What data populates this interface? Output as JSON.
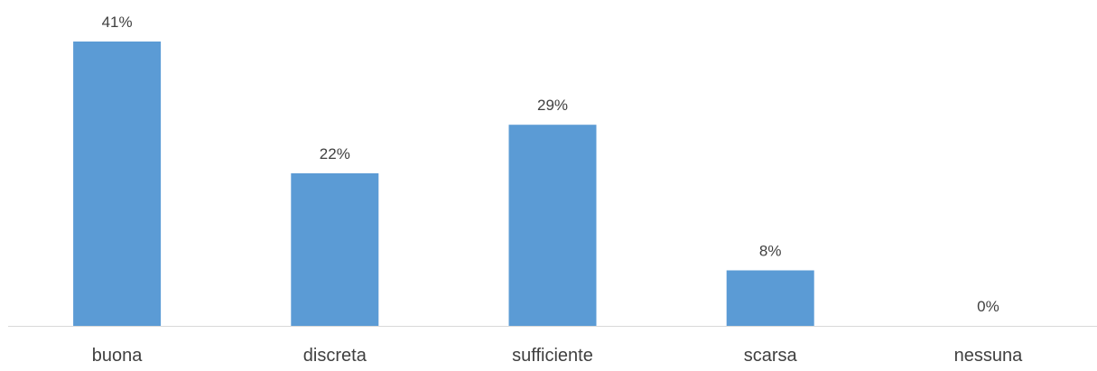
{
  "chart_data": {
    "type": "bar",
    "categories": [
      "buona",
      "discreta",
      "sufficiente",
      "scarsa",
      "nessuna"
    ],
    "values": [
      41,
      22,
      29,
      8,
      0
    ],
    "data_labels": [
      "41%",
      "22%",
      "29%",
      "8%",
      "0%"
    ],
    "title": "",
    "xlabel": "",
    "ylabel": "",
    "ylim": [
      0,
      41
    ],
    "grid": false,
    "legend": "none",
    "bar_color": "#5B9BD5",
    "axis_color": "#D9D9D9",
    "text_color": "#404040"
  }
}
